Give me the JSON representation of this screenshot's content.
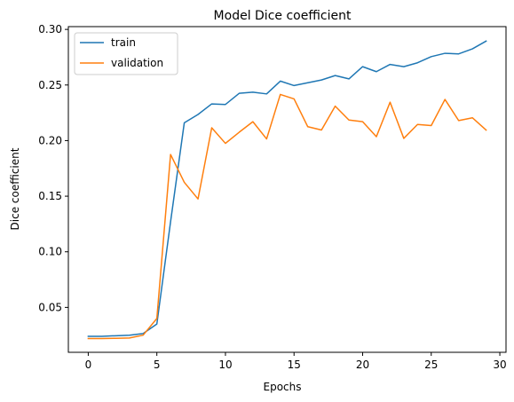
{
  "chart_data": {
    "type": "line",
    "title": "Model Dice coefficient",
    "xlabel": "Epochs",
    "ylabel": "Dice coefficient",
    "x": [
      0,
      1,
      2,
      3,
      4,
      5,
      6,
      7,
      8,
      9,
      10,
      11,
      12,
      13,
      14,
      15,
      16,
      17,
      18,
      19,
      20,
      21,
      22,
      23,
      24,
      25,
      26,
      27,
      28,
      29
    ],
    "xlim": [
      -1.45,
      30.45
    ],
    "ylim": [
      0.0096,
      0.3025
    ],
    "xticks": [
      0,
      5,
      10,
      15,
      20,
      25,
      30
    ],
    "yticks": [
      0.05,
      0.1,
      0.15,
      0.2,
      0.25,
      0.3
    ],
    "ytick_labels": [
      "0.05",
      "0.10",
      "0.15",
      "0.20",
      "0.25",
      "0.30"
    ],
    "grid": false,
    "legend_position": "top-left",
    "series": [
      {
        "name": "train",
        "color": "#1f77b4",
        "values": [
          0.024,
          0.024,
          0.0245,
          0.025,
          0.0265,
          0.035,
          0.127,
          0.216,
          0.2235,
          0.233,
          0.2325,
          0.2425,
          0.2435,
          0.242,
          0.2535,
          0.2495,
          0.252,
          0.2545,
          0.2585,
          0.2555,
          0.2665,
          0.262,
          0.2685,
          0.2665,
          0.27,
          0.2755,
          0.2785,
          0.278,
          0.2825,
          0.2895
        ]
      },
      {
        "name": "validation",
        "color": "#ff7f0e",
        "values": [
          0.022,
          0.022,
          0.0222,
          0.0225,
          0.025,
          0.04,
          0.1875,
          0.1625,
          0.1475,
          0.2115,
          0.1975,
          0.2075,
          0.217,
          0.2015,
          0.2415,
          0.2375,
          0.2125,
          0.2095,
          0.231,
          0.2185,
          0.217,
          0.2035,
          0.2345,
          0.202,
          0.2145,
          0.2135,
          0.237,
          0.218,
          0.2205,
          0.2095
        ]
      }
    ]
  }
}
